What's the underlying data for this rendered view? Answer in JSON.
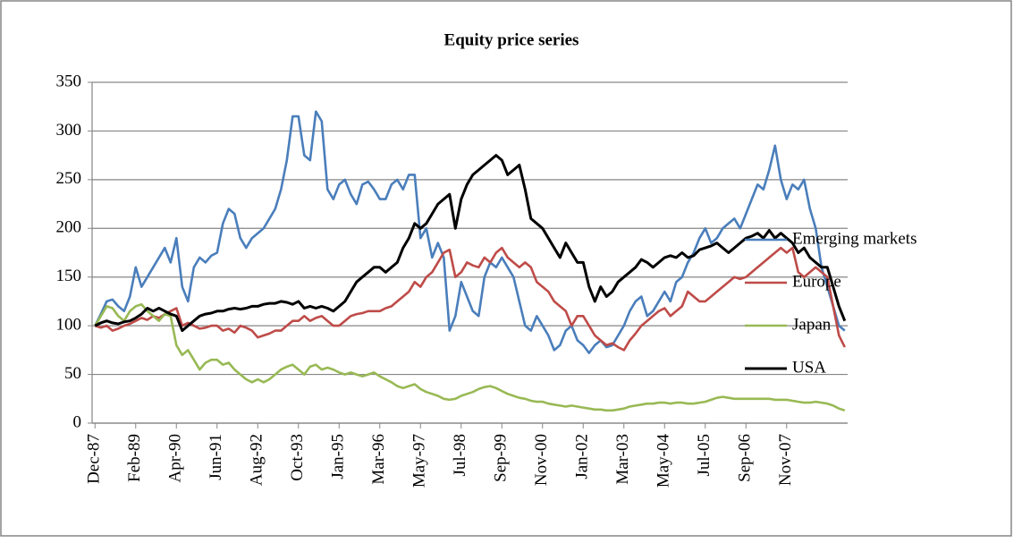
{
  "chart_data": {
    "type": "line",
    "title": "Equity price series",
    "categories": [
      "Dec-87",
      null,
      null,
      null,
      null,
      null,
      null,
      "Feb-89",
      null,
      null,
      null,
      null,
      null,
      null,
      "Apr-90",
      null,
      null,
      null,
      null,
      null,
      null,
      "Jun-91",
      null,
      null,
      null,
      null,
      null,
      null,
      "Aug-92",
      null,
      null,
      null,
      null,
      null,
      null,
      "Oct-93",
      null,
      null,
      null,
      null,
      null,
      null,
      "Jan-95",
      null,
      null,
      null,
      null,
      null,
      null,
      "Mar-96",
      null,
      null,
      null,
      null,
      null,
      null,
      "May-97",
      null,
      null,
      null,
      null,
      null,
      null,
      "Jul-98",
      null,
      null,
      null,
      null,
      null,
      null,
      "Sep-99",
      null,
      null,
      null,
      null,
      null,
      null,
      "Nov-00",
      null,
      null,
      null,
      null,
      null,
      null,
      "Jan-02",
      null,
      null,
      null,
      null,
      null,
      null,
      "Mar-03",
      null,
      null,
      null,
      null,
      null,
      null,
      "May-04",
      null,
      null,
      null,
      null,
      null,
      null,
      "Jul-05",
      null,
      null,
      null,
      null,
      null,
      null,
      "Sep-06",
      null,
      null,
      null,
      null,
      null,
      null,
      "Nov-07",
      null,
      null,
      null,
      null,
      null,
      null,
      null,
      null,
      null,
      null
    ],
    "series": [
      {
        "name": "Emerging markets",
        "color": "#4a7ebb",
        "values": [
          100,
          112,
          125,
          127,
          120,
          115,
          130,
          160,
          140,
          150,
          160,
          170,
          180,
          165,
          190,
          140,
          125,
          160,
          170,
          165,
          172,
          175,
          205,
          220,
          215,
          190,
          180,
          190,
          195,
          200,
          210,
          220,
          240,
          270,
          315,
          315,
          275,
          270,
          320,
          310,
          240,
          230,
          245,
          250,
          235,
          225,
          245,
          248,
          240,
          230,
          230,
          245,
          250,
          240,
          255,
          255,
          190,
          200,
          170,
          185,
          170,
          95,
          110,
          145,
          130,
          115,
          110,
          150,
          165,
          160,
          170,
          160,
          150,
          125,
          100,
          95,
          110,
          100,
          90,
          75,
          80,
          95,
          100,
          85,
          80,
          72,
          80,
          85,
          78,
          80,
          90,
          100,
          115,
          125,
          130,
          110,
          115,
          125,
          135,
          125,
          145,
          150,
          165,
          175,
          190,
          200,
          185,
          190,
          200,
          205,
          210,
          200,
          215,
          230,
          245,
          240,
          260,
          285,
          250,
          230,
          245,
          240,
          250,
          220,
          200,
          160,
          140,
          120,
          100,
          95
        ]
      },
      {
        "name": "Europe",
        "color": "#be4b48",
        "values": [
          100,
          98,
          100,
          95,
          97,
          100,
          102,
          105,
          108,
          106,
          110,
          108,
          112,
          115,
          118,
          100,
          103,
          100,
          97,
          98,
          100,
          100,
          95,
          97,
          93,
          100,
          98,
          95,
          88,
          90,
          92,
          95,
          95,
          100,
          105,
          105,
          110,
          105,
          108,
          110,
          105,
          100,
          100,
          105,
          110,
          112,
          113,
          115,
          115,
          115,
          118,
          120,
          125,
          130,
          135,
          145,
          140,
          150,
          155,
          165,
          175,
          178,
          150,
          155,
          165,
          162,
          160,
          170,
          165,
          175,
          180,
          170,
          165,
          160,
          165,
          160,
          145,
          140,
          135,
          125,
          120,
          115,
          100,
          110,
          110,
          100,
          90,
          85,
          80,
          82,
          78,
          75,
          85,
          92,
          100,
          105,
          110,
          115,
          118,
          110,
          115,
          120,
          135,
          130,
          125,
          125,
          130,
          135,
          140,
          145,
          150,
          148,
          150,
          155,
          160,
          165,
          170,
          175,
          180,
          175,
          180,
          155,
          150,
          155,
          160,
          155,
          150,
          120,
          90,
          78
        ]
      },
      {
        "name": "Japan",
        "color": "#98b954",
        "values": [
          100,
          110,
          120,
          118,
          110,
          105,
          115,
          120,
          122,
          115,
          110,
          105,
          112,
          110,
          80,
          70,
          75,
          65,
          55,
          62,
          65,
          65,
          60,
          62,
          55,
          50,
          45,
          42,
          45,
          42,
          45,
          50,
          55,
          58,
          60,
          55,
          50,
          58,
          60,
          55,
          57,
          55,
          52,
          50,
          52,
          50,
          48,
          50,
          52,
          48,
          45,
          42,
          38,
          36,
          38,
          40,
          35,
          32,
          30,
          28,
          25,
          24,
          25,
          28,
          30,
          32,
          35,
          37,
          38,
          36,
          33,
          30,
          28,
          26,
          25,
          23,
          22,
          22,
          20,
          19,
          18,
          17,
          18,
          17,
          16,
          15,
          14,
          14,
          13,
          13,
          14,
          15,
          17,
          18,
          19,
          20,
          20,
          21,
          21,
          20,
          21,
          21,
          20,
          20,
          21,
          22,
          24,
          26,
          27,
          26,
          25,
          25,
          25,
          25,
          25,
          25,
          25,
          24,
          24,
          24,
          23,
          22,
          21,
          21,
          22,
          21,
          20,
          18,
          15,
          13
        ]
      },
      {
        "name": "USA",
        "color": "#000000",
        "values": [
          100,
          103,
          105,
          103,
          102,
          104,
          105,
          108,
          112,
          118,
          115,
          118,
          115,
          112,
          110,
          95,
          100,
          105,
          110,
          112,
          113,
          115,
          115,
          117,
          118,
          117,
          118,
          120,
          120,
          122,
          123,
          123,
          125,
          124,
          122,
          125,
          118,
          120,
          118,
          120,
          118,
          115,
          120,
          125,
          135,
          145,
          150,
          155,
          160,
          160,
          155,
          160,
          165,
          180,
          190,
          205,
          200,
          205,
          215,
          225,
          230,
          235,
          200,
          230,
          245,
          255,
          260,
          265,
          270,
          275,
          270,
          255,
          260,
          265,
          240,
          210,
          205,
          200,
          190,
          180,
          170,
          185,
          175,
          165,
          165,
          140,
          125,
          140,
          130,
          135,
          145,
          150,
          155,
          160,
          168,
          165,
          160,
          165,
          170,
          172,
          170,
          175,
          170,
          172,
          178,
          180,
          182,
          185,
          180,
          175,
          180,
          185,
          190,
          192,
          195,
          190,
          198,
          190,
          195,
          190,
          185,
          175,
          180,
          170,
          165,
          160,
          160,
          140,
          120,
          105
        ]
      }
    ],
    "ylim": [
      0,
      350
    ],
    "yticks": [
      0,
      50,
      100,
      150,
      200,
      250,
      300,
      350
    ],
    "grid": true,
    "legend": "right"
  }
}
